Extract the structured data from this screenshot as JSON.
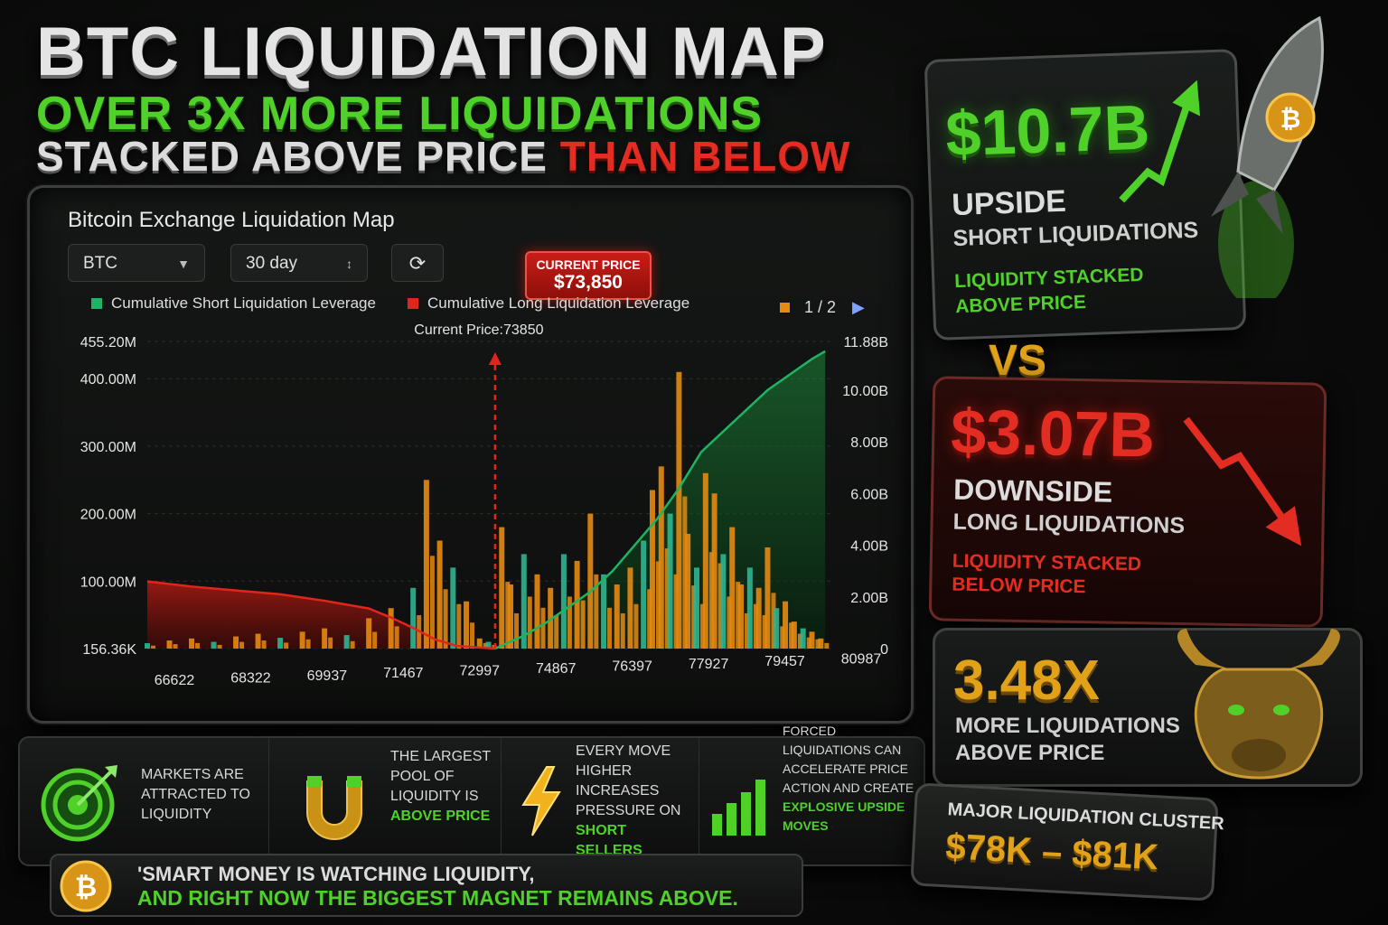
{
  "headline": {
    "title": "BTC LIQUIDATION MAP",
    "sub1": "OVER 3X MORE LIQUIDATIONS",
    "sub2_a": "STACKED ABOVE PRICE",
    "sub2_b": "THAN BELOW"
  },
  "panel": {
    "title": "Bitcoin Exchange Liquidation Map",
    "coin": "BTC",
    "range": "30 day",
    "price_badge_label": "CURRENT PRICE",
    "price_badge_value": "$73,850",
    "legend_short": "Cumulative Short Liquidation Leverage",
    "legend_long": "Cumulative Long Liquidation Leverage",
    "pager": "1 / 2",
    "current_price_label": "Current Price:73850"
  },
  "chart_data": {
    "type": "bar",
    "current_price": 73850,
    "x_ticks": [
      "66622",
      "68322",
      "69937",
      "71467",
      "72997",
      "74867",
      "76397",
      "77927",
      "79457",
      "80987"
    ],
    "x_range": [
      66000,
      81500
    ],
    "y_left_ticks": [
      "455.20M",
      "400.00M",
      "300.00M",
      "200.00M",
      "100.00M",
      "156.36K"
    ],
    "y_left_range": [
      0,
      455.2
    ],
    "y_right_ticks": [
      "11.88B",
      "10.00B",
      "8.00B",
      "6.00B",
      "4.00B",
      "2.00B",
      "0"
    ],
    "y_right_range": [
      0,
      11.88
    ],
    "series": [
      {
        "name": "Cumulative Long Liquidation Leverage",
        "axis": "right",
        "x": [
          66000,
          67000,
          68000,
          69000,
          70000,
          71000,
          71500,
          72000,
          72500,
          73000,
          73850
        ],
        "values": [
          2.6,
          2.4,
          2.25,
          2.1,
          1.85,
          1.55,
          1.2,
          0.8,
          0.35,
          0.1,
          0.0
        ]
      },
      {
        "name": "Cumulative Short Liquidation Leverage",
        "axis": "right",
        "x": [
          73850,
          74500,
          75000,
          75500,
          76000,
          76500,
          77000,
          77500,
          78000,
          78500,
          79000,
          79500,
          80000,
          80500,
          81000,
          81300
        ],
        "values": [
          0.0,
          0.5,
          1.0,
          1.6,
          2.2,
          3.0,
          4.0,
          5.0,
          6.2,
          7.6,
          8.4,
          9.2,
          10.0,
          10.6,
          11.2,
          11.5
        ]
      }
    ],
    "bars": {
      "axis": "left",
      "x": [
        66000,
        66500,
        67000,
        67500,
        68000,
        68500,
        69000,
        69500,
        70000,
        70500,
        71000,
        71500,
        72000,
        72300,
        72600,
        72900,
        73200,
        73500,
        73700,
        74000,
        74200,
        74500,
        74800,
        75100,
        75400,
        75700,
        76000,
        76300,
        76600,
        76900,
        77200,
        77400,
        77600,
        77800,
        78000,
        78200,
        78400,
        78600,
        78800,
        79000,
        79200,
        79400,
        79600,
        79800,
        80000,
        80200,
        80400,
        80600,
        80800,
        81000,
        81200
      ],
      "values": [
        8,
        12,
        15,
        10,
        18,
        22,
        16,
        25,
        30,
        20,
        45,
        60,
        90,
        250,
        160,
        120,
        70,
        15,
        10,
        180,
        95,
        140,
        110,
        90,
        140,
        130,
        200,
        110,
        95,
        120,
        160,
        235,
        270,
        200,
        410,
        170,
        120,
        260,
        230,
        140,
        180,
        95,
        120,
        90,
        150,
        60,
        70,
        40,
        30,
        25,
        15
      ]
    },
    "xlabel": "",
    "ylabel": ""
  },
  "info": [
    {
      "text": "MARKETS ARE ATTRACTED TO LIQUIDITY",
      "highlight": ""
    },
    {
      "text": "THE LARGEST POOL OF LIQUIDITY IS",
      "highlight": "ABOVE PRICE"
    },
    {
      "text": "EVERY MOVE HIGHER INCREASES PRESSURE ON",
      "highlight": "SHORT SELLERS"
    },
    {
      "text": "FORCED LIQUIDATIONS CAN ACCELERATE PRICE ACTION AND CREATE",
      "highlight": "EXPLOSIVE UPSIDE MOVES"
    }
  ],
  "quote": {
    "line1": "'SMART MONEY IS WATCHING LIQUIDITY,",
    "line2": "AND RIGHT NOW THE BIGGEST MAGNET REMAINS ABOVE."
  },
  "cards": {
    "upside": {
      "value": "$10.7B",
      "label1": "UPSIDE",
      "label2": "SHORT LIQUIDATIONS",
      "note1": "LIQUIDITY STACKED",
      "note2": "ABOVE PRICE"
    },
    "vs": "VS",
    "downside": {
      "value": "$3.07B",
      "label1": "DOWNSIDE",
      "label2": "LONG LIQUIDATIONS",
      "note1": "LIQUIDITY STACKED",
      "note2": "BELOW PRICE"
    },
    "ratio": {
      "value": "3.48X",
      "label1": "MORE LIQUIDATIONS",
      "label2": "ABOVE PRICE"
    },
    "cluster": {
      "label": "MAJOR LIQUIDATION CLUSTER",
      "value": "$78K – $81K"
    }
  },
  "colors": {
    "short": "#1fb463",
    "long": "#e0261c",
    "bar_orange": "#e58a12",
    "bar_teal": "#2fb592",
    "accent_gold": "#e1a21a"
  }
}
